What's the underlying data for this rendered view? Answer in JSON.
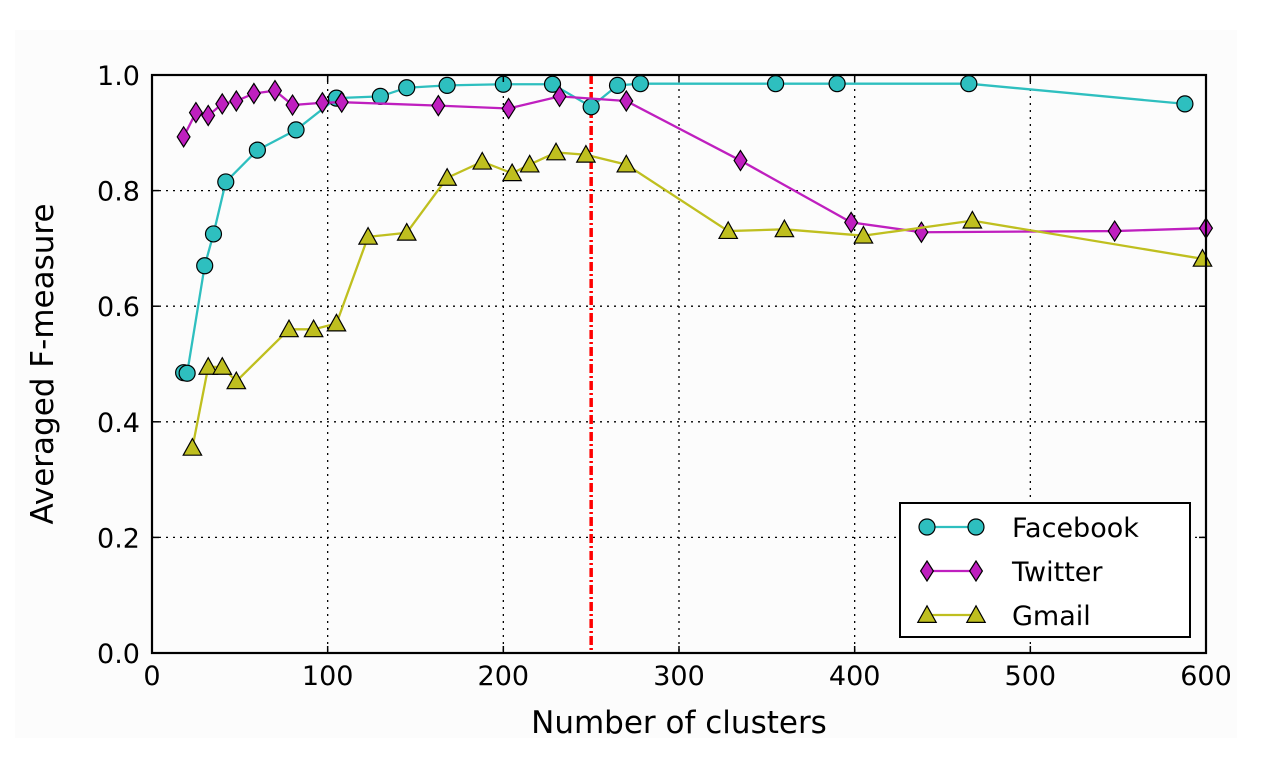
{
  "chart_data": {
    "type": "line",
    "xlabel": "Number of clusters",
    "ylabel": "Averaged F-measure",
    "xlim": [
      0,
      600
    ],
    "ylim": [
      0.0,
      1.0
    ],
    "xticks": [
      0,
      100,
      200,
      300,
      400,
      500,
      600
    ],
    "xtick_labels": [
      "0",
      "100",
      "200",
      "300",
      "400",
      "500",
      "600"
    ],
    "yticks": [
      0.0,
      0.2,
      0.4,
      0.6,
      0.8,
      1.0
    ],
    "ytick_labels": [
      "0.0",
      "0.2",
      "0.4",
      "0.6",
      "0.8",
      "1.0"
    ],
    "grid": true,
    "legend_position": "bottom-right",
    "reference_line": {
      "x": 250,
      "color": "#ff0000",
      "style": "dash-dot"
    },
    "series": [
      {
        "name": "Facebook",
        "color": "#2ebfbf",
        "marker": "circle",
        "x": [
          18,
          20,
          30,
          35,
          42,
          60,
          82,
          105,
          130,
          145,
          168,
          200,
          228,
          250,
          265,
          278,
          355,
          390,
          465,
          588
        ],
        "y": [
          0.485,
          0.484,
          0.67,
          0.725,
          0.815,
          0.87,
          0.905,
          0.96,
          0.963,
          0.978,
          0.982,
          0.984,
          0.984,
          0.945,
          0.982,
          0.985,
          0.985,
          0.985,
          0.985,
          0.95
        ]
      },
      {
        "name": "Twitter",
        "color": "#bf1fbf",
        "marker": "diamond",
        "x": [
          18,
          25,
          32,
          40,
          48,
          58,
          70,
          80,
          97,
          108,
          163,
          203,
          232,
          270,
          335,
          398,
          438,
          548,
          600
        ],
        "y": [
          0.893,
          0.935,
          0.93,
          0.95,
          0.955,
          0.968,
          0.973,
          0.948,
          0.952,
          0.953,
          0.947,
          0.942,
          0.963,
          0.955,
          0.852,
          0.745,
          0.728,
          0.73,
          0.735
        ]
      },
      {
        "name": "Gmail",
        "color": "#bfbf1f",
        "marker": "triangle",
        "x": [
          23,
          32,
          40,
          48,
          78,
          92,
          105,
          123,
          145,
          168,
          188,
          205,
          215,
          230,
          247,
          270,
          328,
          360,
          405,
          467,
          598
        ],
        "y": [
          0.355,
          0.495,
          0.495,
          0.47,
          0.56,
          0.56,
          0.57,
          0.72,
          0.727,
          0.822,
          0.85,
          0.83,
          0.845,
          0.866,
          0.862,
          0.845,
          0.73,
          0.733,
          0.722,
          0.748,
          0.682
        ]
      }
    ]
  }
}
